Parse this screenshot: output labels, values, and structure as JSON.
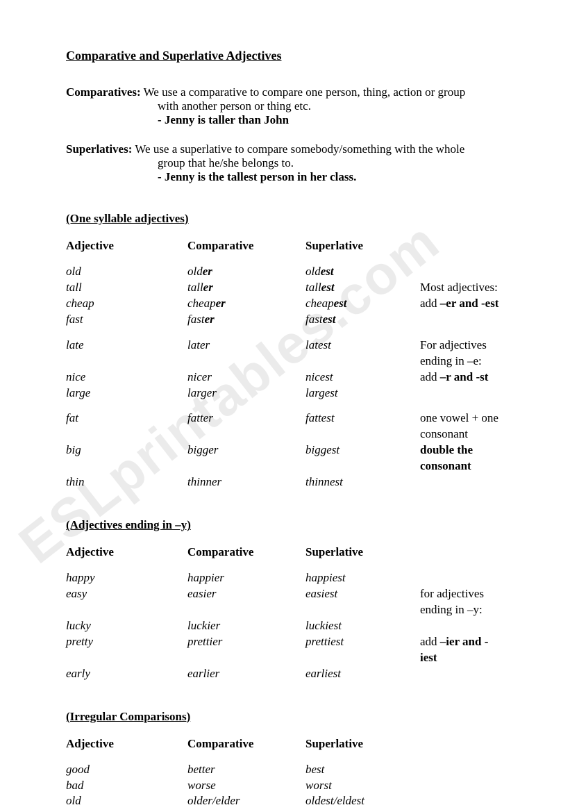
{
  "title": "Comparative and Superlative Adjectives",
  "defs": {
    "comp": {
      "label": "Comparatives:",
      "line1": " We use a comparative to compare one person, thing, action or group",
      "line2": "with another person or thing etc.",
      "example": "- Jenny is taller than John"
    },
    "sup": {
      "label": "Superlatives:",
      "line1": " We use a superlative to compare somebody/something with the whole",
      "line2": "group that he/she belongs to.",
      "example": "- Jenny is the tallest person in her class."
    }
  },
  "headers": {
    "adj": "Adjective",
    "comp": "Comparative",
    "sup": "Superlative"
  },
  "sec1": {
    "title": "(One syllable adjectives)",
    "g1": [
      {
        "a": "old",
        "c_pre": "old",
        "c_b": "er",
        "s_pre": "old",
        "s_b": "est",
        "note": ""
      },
      {
        "a": "tall",
        "c_pre": " tall",
        "c_b": "er",
        "s_pre": "tall",
        "s_b": "est",
        "note": "Most adjectives:"
      },
      {
        "a": "cheap",
        "c_pre": "cheap",
        "c_b": "er",
        "s_pre": "cheap",
        "s_b": "est",
        "note_pre": "  add ",
        "note_b": "–er and -est"
      },
      {
        "a": "fast",
        "c_pre": "fast",
        "c_b": "er",
        "s_pre": "fast",
        "s_b": "est",
        "note": ""
      }
    ],
    "g2": [
      {
        "a": "late",
        "c": "later",
        "s": "latest",
        "note": "For adjectives ending in –e:"
      },
      {
        "a": "nice",
        "c": "nicer",
        "s": "nicest",
        "note_pre": "      add ",
        "note_b": "–r and -st"
      },
      {
        "a": "large",
        "c": "larger",
        "s": "largest",
        "note": ""
      }
    ],
    "g3": [
      {
        "a": "fat",
        "c": "fatter",
        "s": "fattest",
        "note": "one vowel + one consonant"
      },
      {
        "a": "big",
        "c": "bigger",
        "s": "biggest",
        "note_b": "double the consonant"
      },
      {
        "a": "thin",
        "c": "thinner",
        "s": "thinnest",
        "note": ""
      }
    ]
  },
  "sec2": {
    "title": "(Adjectives ending in –y)",
    "rows": [
      {
        "a": "happy",
        "c": "happier",
        "s": "happiest",
        "note": ""
      },
      {
        "a": "easy",
        "c": " easier",
        "s": "easiest",
        "note": "for adjectives ending in –y:"
      },
      {
        "a": "lucky",
        "c": "luckier",
        "s": "luckiest",
        "note": ""
      },
      {
        "a": "pretty",
        "c": "prettier",
        "s": "prettiest",
        "note_pre": "add ",
        "note_b": "–ier and -iest"
      },
      {
        "a": "early",
        "c": "earlier",
        "s": "earliest",
        "note": ""
      }
    ]
  },
  "sec3": {
    "title": "(Irregular Comparisons)",
    "rows": [
      {
        "a": "good",
        "c": "better",
        "s": "best"
      },
      {
        "a": "bad",
        "c": "worse",
        "s": "worst"
      },
      {
        "a": "old",
        "c": "older/elder",
        "s": "oldest/eldest"
      }
    ]
  },
  "watermark": "ESLprintables.com"
}
